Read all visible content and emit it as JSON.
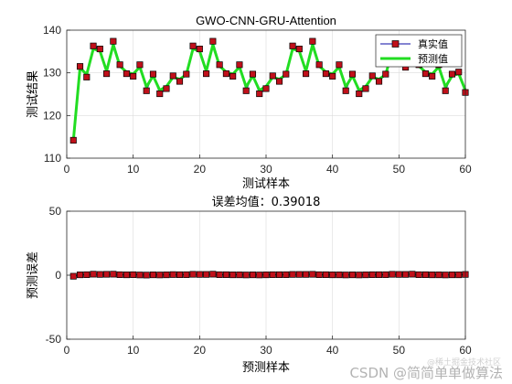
{
  "chart_data": [
    {
      "type": "line",
      "title": "GWO-CNN-GRU-Attention",
      "xlabel": "测试样本",
      "ylabel": "测试结果",
      "xlim": [
        0,
        60
      ],
      "ylim": [
        110,
        140
      ],
      "xticks": [
        0,
        10,
        20,
        30,
        40,
        50,
        60
      ],
      "yticks": [
        110,
        120,
        130,
        140
      ],
      "grid": true,
      "legend_position": "top-right",
      "x": [
        1,
        2,
        3,
        4,
        5,
        6,
        7,
        8,
        9,
        10,
        11,
        12,
        13,
        14,
        15,
        16,
        17,
        18,
        19,
        20,
        21,
        22,
        23,
        24,
        25,
        26,
        27,
        28,
        29,
        30,
        31,
        32,
        33,
        34,
        35,
        36,
        37,
        38,
        39,
        40,
        41,
        42,
        43,
        44,
        45,
        46,
        47,
        48,
        49,
        50,
        51,
        52,
        53,
        54,
        55,
        56,
        57,
        58,
        59,
        60
      ],
      "series": [
        {
          "name": "真实值",
          "color": "#0a0aa6",
          "marker": "square",
          "marker_color": "#c0101a",
          "values": [
            114.2,
            131.5,
            129.0,
            136.3,
            135.6,
            129.8,
            137.4,
            131.9,
            129.8,
            129.2,
            131.9,
            125.8,
            129.7,
            125.1,
            126.3,
            129.3,
            128.0,
            129.7,
            136.3,
            135.6,
            129.8,
            137.4,
            131.9,
            129.8,
            129.2,
            131.9,
            125.8,
            129.7,
            125.1,
            126.3,
            129.3,
            128.0,
            129.7,
            136.3,
            135.6,
            129.8,
            137.4,
            131.9,
            129.8,
            129.2,
            131.9,
            125.8,
            129.7,
            125.1,
            126.3,
            129.3,
            128.0,
            129.7,
            135.7,
            135.6,
            131.3,
            137.4,
            131.9,
            129.8,
            129.2,
            131.9,
            125.8,
            129.7,
            130.2,
            125.4
          ]
        },
        {
          "name": "预测值",
          "color": "#22dd22",
          "values": [
            114.2,
            131.2,
            129.6,
            135.6,
            135.1,
            130.4,
            136.6,
            131.6,
            130.2,
            129.7,
            131.4,
            126.7,
            129.3,
            125.9,
            126.8,
            129.0,
            128.5,
            129.6,
            135.6,
            135.1,
            130.4,
            136.6,
            131.6,
            130.2,
            129.7,
            131.4,
            126.7,
            129.3,
            125.9,
            126.8,
            129.0,
            128.5,
            129.6,
            135.6,
            135.1,
            130.4,
            136.6,
            131.6,
            130.2,
            129.7,
            131.4,
            126.7,
            129.3,
            125.9,
            126.8,
            129.0,
            128.5,
            129.6,
            135.1,
            135.0,
            131.6,
            136.6,
            131.6,
            130.2,
            129.7,
            131.4,
            126.7,
            129.3,
            129.8,
            125.9
          ]
        }
      ]
    },
    {
      "type": "line",
      "title": "误差均值：0.39018",
      "xlabel": "预测样本",
      "ylabel": "预测误差",
      "xlim": [
        0,
        60
      ],
      "ylim": [
        -50,
        50
      ],
      "xticks": [
        0,
        10,
        20,
        30,
        40,
        50,
        60
      ],
      "yticks": [
        -50,
        0,
        50
      ],
      "grid": true,
      "x": [
        1,
        2,
        3,
        4,
        5,
        6,
        7,
        8,
        9,
        10,
        11,
        12,
        13,
        14,
        15,
        16,
        17,
        18,
        19,
        20,
        21,
        22,
        23,
        24,
        25,
        26,
        27,
        28,
        29,
        30,
        31,
        32,
        33,
        34,
        35,
        36,
        37,
        38,
        39,
        40,
        41,
        42,
        43,
        44,
        45,
        46,
        47,
        48,
        49,
        50,
        51,
        52,
        53,
        54,
        55,
        56,
        57,
        58,
        59,
        60
      ],
      "series": [
        {
          "color": "#000000",
          "marker": "square",
          "marker_color": "#c0101a",
          "values": [
            -0.8,
            0.3,
            0.4,
            0.8,
            0.6,
            0.7,
            0.8,
            0.4,
            0.3,
            0.4,
            0.2,
            0.1,
            0.3,
            0.2,
            0.3,
            0.5,
            0.4,
            0.4,
            0.7,
            0.6,
            0.6,
            0.8,
            0.4,
            0.4,
            0.3,
            0.3,
            0.2,
            0.3,
            0.2,
            0.3,
            0.4,
            0.4,
            0.4,
            0.6,
            0.6,
            0.6,
            0.7,
            0.4,
            0.4,
            0.3,
            0.3,
            0.2,
            0.3,
            0.2,
            0.3,
            0.4,
            0.4,
            0.4,
            0.7,
            0.6,
            0.6,
            0.8,
            0.4,
            0.4,
            0.3,
            0.3,
            0.2,
            0.3,
            0.3,
            0.6
          ]
        }
      ]
    }
  ],
  "watermark": "CSDN @简简单单做算法",
  "watermark_sub": "@稀土掘金技术社区"
}
